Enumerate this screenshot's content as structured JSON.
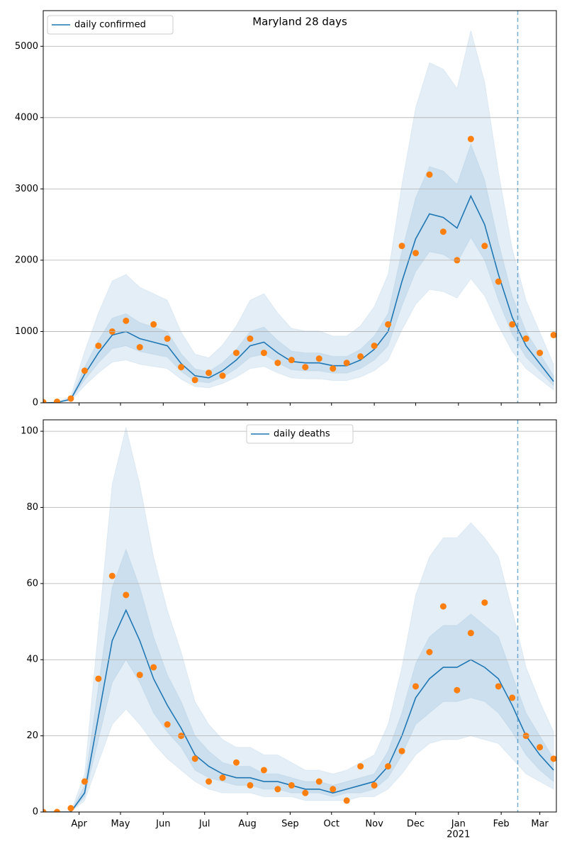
{
  "chart_data": [
    {
      "type": "line",
      "title": "Maryland 28 days",
      "x": [
        0,
        10,
        20,
        30,
        40,
        50,
        60,
        70,
        80,
        90,
        100,
        110,
        120,
        130,
        140,
        150,
        160,
        170,
        180,
        190,
        200,
        210,
        220,
        230,
        240,
        250,
        260,
        270,
        280,
        290,
        300,
        310,
        320,
        330,
        340,
        350,
        360,
        370
      ],
      "series": [
        {
          "name": "daily confirmed",
          "color": "#1f77b4",
          "values": [
            0,
            5,
            50,
            400,
            700,
            950,
            1000,
            900,
            850,
            800,
            550,
            380,
            350,
            450,
            600,
            800,
            850,
            700,
            580,
            560,
            560,
            520,
            520,
            600,
            750,
            1000,
            1700,
            2300,
            2650,
            2600,
            2450,
            2900,
            2500,
            1800,
            1200,
            800,
            550,
            300
          ]
        }
      ],
      "bands": [
        {
          "lower": [
            0,
            3,
            30,
            240,
            420,
            570,
            600,
            540,
            510,
            480,
            330,
            228,
            210,
            270,
            360,
            480,
            510,
            420,
            348,
            336,
            336,
            312,
            312,
            360,
            450,
            600,
            1020,
            1380,
            1590,
            1560,
            1470,
            1740,
            1500,
            1080,
            720,
            480,
            330,
            180
          ],
          "upper": [
            0,
            9,
            90,
            720,
            1260,
            1710,
            1800,
            1620,
            1530,
            1440,
            990,
            684,
            630,
            810,
            1080,
            1440,
            1530,
            1260,
            1044,
            1008,
            1008,
            936,
            936,
            1080,
            1350,
            1800,
            3060,
            4140,
            4770,
            4680,
            4410,
            5220,
            4500,
            3240,
            2160,
            1440,
            990,
            540
          ]
        },
        {
          "lower": [
            0,
            4,
            40,
            320,
            560,
            760,
            800,
            720,
            680,
            640,
            440,
            304,
            280,
            360,
            480,
            640,
            680,
            560,
            464,
            448,
            448,
            416,
            416,
            480,
            600,
            800,
            1360,
            1840,
            2120,
            2080,
            1960,
            2320,
            2000,
            1440,
            960,
            640,
            440,
            240
          ],
          "upper": [
            0,
            6,
            63,
            500,
            875,
            1188,
            1250,
            1125,
            1063,
            1000,
            688,
            475,
            438,
            563,
            750,
            1000,
            1063,
            875,
            725,
            700,
            700,
            650,
            650,
            750,
            938,
            1250,
            2125,
            2875,
            3313,
            3250,
            3063,
            3625,
            3125,
            2250,
            1500,
            1000,
            688,
            375
          ]
        }
      ],
      "band_color": "#1f77b4",
      "observed": {
        "color": "#ff7f0e",
        "values": [
          10,
          15,
          60,
          450,
          800,
          1000,
          1150,
          780,
          1100,
          900,
          500,
          320,
          420,
          380,
          700,
          900,
          700,
          560,
          600,
          500,
          620,
          480,
          560,
          650,
          800,
          1100,
          2200,
          2100,
          3200,
          2400,
          2000,
          3700,
          2200,
          1700,
          1100,
          900,
          700,
          950
        ]
      },
      "xlim": [
        0,
        372
      ],
      "ylim": [
        0,
        5500
      ],
      "yticks": [
        0,
        1000,
        2000,
        3000,
        4000,
        5000
      ],
      "xticks": [
        26,
        56,
        87,
        117,
        148,
        179,
        209,
        240,
        270,
        301,
        332,
        360
      ],
      "vline": {
        "x": 344,
        "color": "#1f77b4"
      },
      "grid": true,
      "legend": "upper left"
    },
    {
      "type": "line",
      "x": [
        0,
        10,
        20,
        30,
        40,
        50,
        60,
        70,
        80,
        90,
        100,
        110,
        120,
        130,
        140,
        150,
        160,
        170,
        180,
        190,
        200,
        210,
        220,
        230,
        240,
        250,
        260,
        270,
        280,
        290,
        300,
        310,
        320,
        330,
        340,
        350,
        360,
        370
      ],
      "series": [
        {
          "name": "daily deaths",
          "color": "#1f77b4",
          "values": [
            0,
            0,
            0,
            5,
            25,
            45,
            53,
            45,
            35,
            28,
            22,
            15,
            12,
            10,
            9,
            9,
            8,
            8,
            7,
            6,
            6,
            5,
            6,
            7,
            8,
            12,
            20,
            30,
            35,
            38,
            38,
            40,
            38,
            35,
            28,
            20,
            15,
            11
          ]
        }
      ],
      "bands": [
        {
          "lower": [
            0,
            0,
            0,
            3,
            13,
            23,
            27,
            23,
            18,
            14,
            11,
            8,
            6,
            5,
            5,
            5,
            4,
            4,
            4,
            3,
            3,
            3,
            3,
            4,
            4,
            6,
            10,
            15,
            18,
            19,
            19,
            20,
            19,
            18,
            14,
            10,
            8,
            6
          ],
          "upper": [
            0,
            0,
            0,
            10,
            48,
            86,
            101,
            86,
            67,
            53,
            42,
            29,
            23,
            19,
            17,
            17,
            15,
            15,
            13,
            11,
            11,
            10,
            11,
            13,
            15,
            23,
            38,
            57,
            67,
            72,
            72,
            76,
            72,
            67,
            53,
            38,
            29,
            21
          ]
        },
        {
          "lower": [
            0,
            0,
            0,
            4,
            19,
            34,
            40,
            34,
            26,
            21,
            17,
            11,
            9,
            8,
            7,
            7,
            6,
            6,
            5,
            5,
            5,
            4,
            5,
            5,
            6,
            9,
            15,
            23,
            26,
            29,
            29,
            30,
            29,
            26,
            21,
            15,
            11,
            8
          ],
          "upper": [
            0,
            0,
            0,
            7,
            33,
            59,
            69,
            59,
            46,
            36,
            29,
            20,
            16,
            13,
            12,
            12,
            10,
            10,
            9,
            8,
            8,
            7,
            8,
            9,
            10,
            16,
            26,
            39,
            46,
            49,
            49,
            52,
            49,
            46,
            36,
            26,
            20,
            14
          ]
        }
      ],
      "band_color": "#1f77b4",
      "observed": {
        "color": "#ff7f0e",
        "values": [
          0,
          0,
          1,
          8,
          35,
          62,
          57,
          36,
          38,
          23,
          20,
          14,
          8,
          9,
          13,
          7,
          11,
          6,
          7,
          5,
          8,
          6,
          3,
          12,
          7,
          12,
          16,
          33,
          42,
          54,
          32,
          47,
          55,
          33,
          30,
          20,
          17,
          14
        ]
      },
      "xlim": [
        0,
        372
      ],
      "ylim": [
        0,
        103
      ],
      "yticks": [
        0,
        20,
        40,
        60,
        80,
        100
      ],
      "xticks": [
        {
          "value": 26,
          "label": "Apr"
        },
        {
          "value": 56,
          "label": "May"
        },
        {
          "value": 87,
          "label": "Jun"
        },
        {
          "value": 117,
          "label": "Jul"
        },
        {
          "value": 148,
          "label": "Aug"
        },
        {
          "value": 179,
          "label": "Sep"
        },
        {
          "value": 209,
          "label": "Oct"
        },
        {
          "value": 240,
          "label": "Nov"
        },
        {
          "value": 270,
          "label": "Dec"
        },
        {
          "value": 301,
          "label": "Jan",
          "sublabel": "2021"
        },
        {
          "value": 332,
          "label": "Feb"
        },
        {
          "value": 360,
          "label": "Mar"
        }
      ],
      "vline": {
        "x": 344,
        "color": "#1f77b4"
      },
      "grid": true,
      "legend": "upper center"
    }
  ]
}
